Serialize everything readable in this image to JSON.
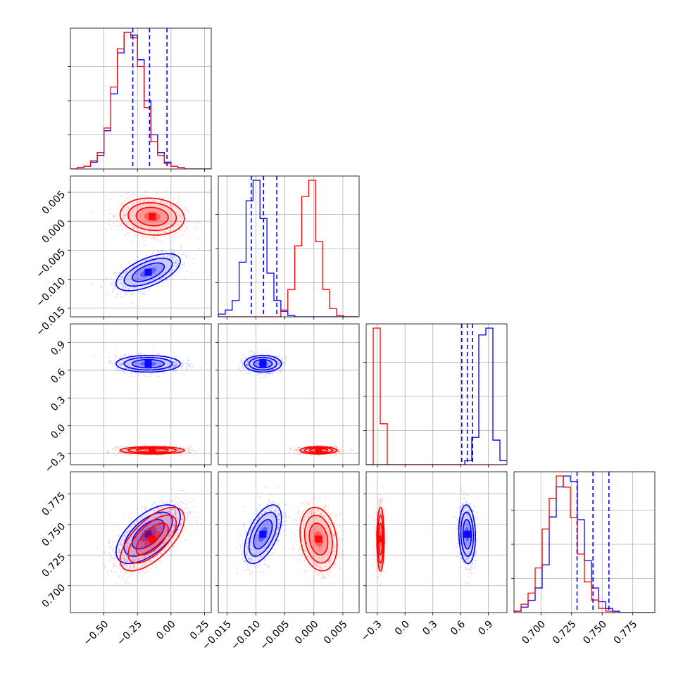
{
  "colors": {
    "blue": "#0000ff",
    "red": "#ff0000",
    "grid": "#b0b0b0"
  },
  "chart_data": {
    "type": "corner",
    "grid": true,
    "parameters": [
      {
        "range": [
          -0.75,
          0.3
        ],
        "ticks": [
          -0.5,
          -0.25,
          0.0,
          0.25
        ],
        "tick_labels": [
          "−0.50",
          "−0.25",
          "0.00",
          "0.25"
        ]
      },
      {
        "range": [
          -0.0165,
          0.0078
        ],
        "ticks": [
          -0.015,
          -0.01,
          -0.005,
          0.0,
          0.005
        ],
        "tick_labels": [
          "−0.015",
          "−0.010",
          "−0.005",
          "0.000",
          "0.005"
        ]
      },
      {
        "range": [
          -0.42,
          1.1
        ],
        "ticks": [
          -0.3,
          0.0,
          0.3,
          0.6,
          0.9
        ],
        "tick_labels": [
          "−0.3",
          "0.0",
          "0.3",
          "0.6",
          "0.9"
        ]
      },
      {
        "range": [
          0.678,
          0.793
        ],
        "ticks": [
          0.7,
          0.725,
          0.75,
          0.775
        ],
        "tick_labels": [
          "0.700",
          "0.725",
          "0.750",
          "0.775"
        ]
      }
    ],
    "quantile_lines": [
      [
        -0.285,
        -0.16,
        -0.03
      ],
      [
        -0.0108,
        -0.0087,
        -0.0064
      ],
      [
        0.612,
        0.672,
        0.729
      ],
      [
        0.7295,
        0.7425,
        0.7555
      ]
    ],
    "quantile_color": "#0000ff",
    "series": [
      {
        "color": "#0000ff",
        "means": [
          -0.17,
          -0.0088,
          0.67,
          0.742
        ],
        "sds": [
          0.12,
          0.0016,
          0.045,
          0.012
        ],
        "correlations": {
          "0-1": 0.6,
          "0-2": 0.0,
          "0-3": 0.6,
          "1-2": 0.0,
          "1-3": 0.55,
          "2-3": -0.1
        },
        "histograms": [
          {
            "start": -0.75,
            "step": 0.05,
            "counts": [
              0,
              1,
              2,
              5,
              10,
              28,
              55,
              85,
              100,
              98,
              80,
              50,
              25,
              12,
              5,
              2,
              1,
              0,
              0,
              0,
              0
            ]
          },
          {
            "start": -0.0165,
            "step": 0.0012,
            "counts": [
              2,
              5,
              12,
              40,
              85,
              100,
              72,
              32,
              12,
              4,
              1,
              0,
              0,
              0,
              0,
              0,
              0,
              0,
              0,
              0
            ]
          },
          {
            "start": -0.42,
            "step": 0.076,
            "counts": [
              0,
              0,
              0,
              0,
              0,
              0,
              0,
              0,
              0,
              0,
              0,
              0,
              0,
              0,
              3,
              20,
              95,
              100,
              18,
              3
            ]
          },
          {
            "start": 0.678,
            "step": 0.00575,
            "counts": [
              1,
              4,
              9,
              18,
              35,
              70,
              92,
              100,
              96,
              68,
              38,
              18,
              8,
              3,
              1,
              0,
              0,
              0,
              0,
              0
            ]
          }
        ]
      },
      {
        "color": "#ff0000",
        "means": [
          -0.14,
          0.0008,
          -0.265,
          0.738
        ],
        "sds": [
          0.12,
          0.0016,
          0.02,
          0.013
        ],
        "correlations": {
          "0-1": -0.1,
          "0-2": 0.0,
          "0-3": 0.65,
          "1-2": 0.0,
          "1-3": -0.2,
          "2-3": 0.0
        },
        "histograms": [
          {
            "start": -0.75,
            "step": 0.05,
            "counts": [
              0,
              1,
              2,
              6,
              12,
              30,
              60,
              88,
              100,
              96,
              75,
              45,
              20,
              10,
              4,
              2,
              1,
              0,
              0,
              0,
              0
            ]
          },
          {
            "start": -0.0165,
            "step": 0.0012,
            "counts": [
              0,
              0,
              0,
              0,
              0,
              0,
              0,
              0,
              0,
              5,
              20,
              52,
              88,
              100,
              55,
              20,
              6,
              1,
              0,
              0
            ]
          },
          {
            "start": -0.42,
            "step": 0.076,
            "counts": [
              0,
              100,
              30,
              0,
              0,
              0,
              0,
              0,
              0,
              0,
              0,
              0,
              0,
              0,
              0,
              0,
              0,
              0,
              0,
              0
            ]
          },
          {
            "start": 0.678,
            "step": 0.00575,
            "counts": [
              1,
              6,
              14,
              32,
              60,
              82,
              98,
              90,
              68,
              42,
              22,
              9,
              3,
              1,
              0,
              0,
              0,
              0,
              0,
              0
            ]
          }
        ]
      }
    ]
  }
}
